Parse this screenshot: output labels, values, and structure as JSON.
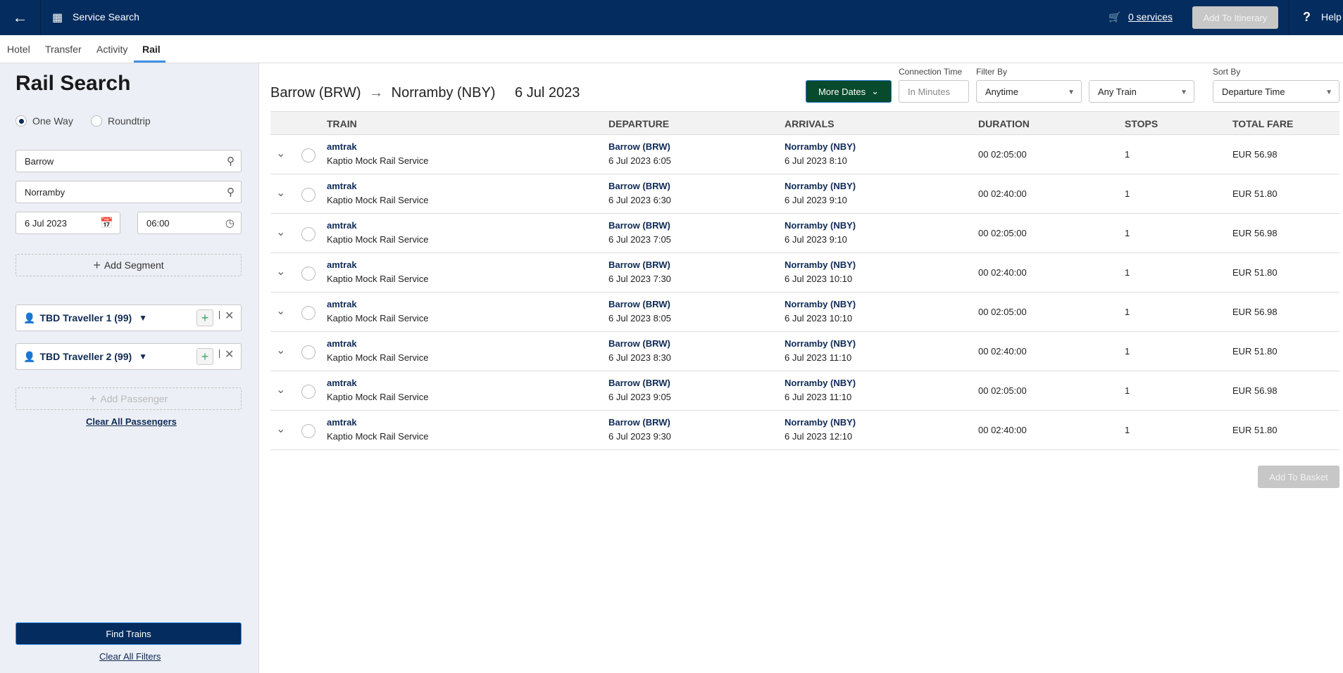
{
  "header": {
    "title": "Service Search",
    "cart_label": "0 services",
    "add_itinerary": "Add To Itinerary",
    "help": "Help",
    "back_icon": "arrow-left-icon",
    "logo_icon": "service-search-icon"
  },
  "tabs": [
    {
      "label": "Hotel"
    },
    {
      "label": "Transfer"
    },
    {
      "label": "Activity"
    },
    {
      "label": "Rail",
      "active": true
    }
  ],
  "sidebar": {
    "title": "Rail Search",
    "trip_types": [
      "One Way",
      "Roundtrip"
    ],
    "selected_trip_type": "One Way",
    "origin": "Barrow",
    "destination": "Norramby",
    "date": "6 Jul 2023",
    "time": "06:00",
    "add_segment": "Add Segment",
    "travellers": [
      "TBD Traveller 1 (99)",
      "TBD Traveller 2 (99)"
    ],
    "add_passenger": "Add Passenger",
    "clear_passengers": "Clear All Passengers",
    "find": "Find Trains",
    "clear_filters": "Clear All Filters"
  },
  "main": {
    "from": "Barrow (BRW)",
    "to": "Norramby (NBY)",
    "date": "6 Jul 2023",
    "more_dates": "More Dates",
    "connection_label": "Connection Time",
    "connection_placeholder": "In Minutes",
    "filter_label": "Filter By",
    "filter_time": "Anytime",
    "filter_train": "Any Train",
    "sort_label": "Sort By",
    "sort_value": "Departure Time",
    "columns": [
      "TRAIN",
      "DEPARTURE",
      "ARRIVALS",
      "DURATION",
      "STOPS",
      "TOTAL FARE"
    ],
    "rows": [
      {
        "operator": "amtrak",
        "service": "Kaptio Mock Rail Service",
        "dep_station": "Barrow (BRW)",
        "dep_time": "6 Jul 2023 6:05",
        "arr_station": "Norramby (NBY)",
        "arr_time": "6 Jul 2023 8:10",
        "duration": "00 02:05:00",
        "stops": "1",
        "fare": "EUR 56.98"
      },
      {
        "operator": "amtrak",
        "service": "Kaptio Mock Rail Service",
        "dep_station": "Barrow (BRW)",
        "dep_time": "6 Jul 2023 6:30",
        "arr_station": "Norramby (NBY)",
        "arr_time": "6 Jul 2023 9:10",
        "duration": "00 02:40:00",
        "stops": "1",
        "fare": "EUR 51.80"
      },
      {
        "operator": "amtrak",
        "service": "Kaptio Mock Rail Service",
        "dep_station": "Barrow (BRW)",
        "dep_time": "6 Jul 2023 7:05",
        "arr_station": "Norramby (NBY)",
        "arr_time": "6 Jul 2023 9:10",
        "duration": "00 02:05:00",
        "stops": "1",
        "fare": "EUR 56.98"
      },
      {
        "operator": "amtrak",
        "service": "Kaptio Mock Rail Service",
        "dep_station": "Barrow (BRW)",
        "dep_time": "6 Jul 2023 7:30",
        "arr_station": "Norramby (NBY)",
        "arr_time": "6 Jul 2023 10:10",
        "duration": "00 02:40:00",
        "stops": "1",
        "fare": "EUR 51.80"
      },
      {
        "operator": "amtrak",
        "service": "Kaptio Mock Rail Service",
        "dep_station": "Barrow (BRW)",
        "dep_time": "6 Jul 2023 8:05",
        "arr_station": "Norramby (NBY)",
        "arr_time": "6 Jul 2023 10:10",
        "duration": "00 02:05:00",
        "stops": "1",
        "fare": "EUR 56.98"
      },
      {
        "operator": "amtrak",
        "service": "Kaptio Mock Rail Service",
        "dep_station": "Barrow (BRW)",
        "dep_time": "6 Jul 2023 8:30",
        "arr_station": "Norramby (NBY)",
        "arr_time": "6 Jul 2023 11:10",
        "duration": "00 02:40:00",
        "stops": "1",
        "fare": "EUR 51.80"
      },
      {
        "operator": "amtrak",
        "service": "Kaptio Mock Rail Service",
        "dep_station": "Barrow (BRW)",
        "dep_time": "6 Jul 2023 9:05",
        "arr_station": "Norramby (NBY)",
        "arr_time": "6 Jul 2023 11:10",
        "duration": "00 02:05:00",
        "stops": "1",
        "fare": "EUR 56.98"
      },
      {
        "operator": "amtrak",
        "service": "Kaptio Mock Rail Service",
        "dep_station": "Barrow (BRW)",
        "dep_time": "6 Jul 2023 9:30",
        "arr_station": "Norramby (NBY)",
        "arr_time": "6 Jul 2023 12:10",
        "duration": "00 02:40:00",
        "stops": "1",
        "fare": "EUR 51.80"
      }
    ],
    "add_basket": "Add To Basket"
  },
  "colors": {
    "header": "#042c5e",
    "more_dates": "#074a2c",
    "tab_underline": "#3d8fe6",
    "sidebar_bg": "#eceff5"
  }
}
